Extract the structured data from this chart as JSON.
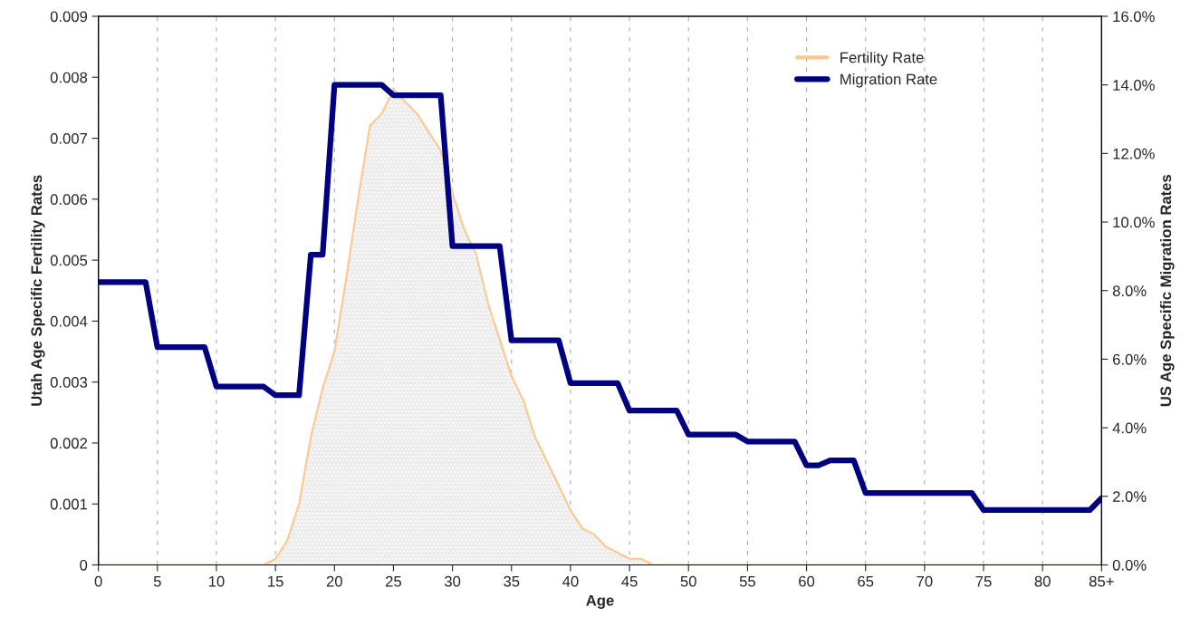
{
  "chart_data": {
    "type": "line",
    "xlabel": "Age",
    "ylabel": "Utah Age Specific Fertility Rates",
    "y2label": "US Age Specific Migration Rates",
    "xlim": [
      0,
      85
    ],
    "xticks": [
      0,
      5,
      10,
      15,
      20,
      25,
      30,
      35,
      40,
      45,
      50,
      55,
      60,
      65,
      70,
      75,
      80,
      {
        "value": 85,
        "label": "85+"
      }
    ],
    "ylim": [
      0,
      0.009
    ],
    "yticks": [
      0,
      0.001,
      0.002,
      0.003,
      0.004,
      0.005,
      0.006,
      0.007,
      0.008,
      0.009
    ],
    "y2lim": [
      0,
      16
    ],
    "y2ticks": [
      {
        "value": 0,
        "label": "0.0%"
      },
      {
        "value": 2,
        "label": "2.0%"
      },
      {
        "value": 4,
        "label": "4.0%"
      },
      {
        "value": 6,
        "label": "6.0%"
      },
      {
        "value": 8,
        "label": "8.0%"
      },
      {
        "value": 10,
        "label": "10.0%"
      },
      {
        "value": 12,
        "label": "12.0%"
      },
      {
        "value": 14,
        "label": "14.0%"
      },
      {
        "value": 16,
        "label": "16.0%"
      }
    ],
    "grid": "x",
    "legend": "top right",
    "series": [
      {
        "name": "Fertility Rate",
        "type": "area",
        "color": "#fcc88e",
        "x": [
          0,
          14,
          15,
          16,
          17,
          18,
          19,
          20,
          21,
          22,
          23,
          24,
          25,
          26,
          27,
          28,
          29,
          30,
          31,
          32,
          33,
          34,
          35,
          36,
          37,
          38,
          39,
          40,
          41,
          42,
          43,
          44,
          45,
          46,
          47,
          85
        ],
        "values": [
          0,
          0,
          0.0001,
          0.0004,
          0.001,
          0.0021,
          0.0029,
          0.0035,
          0.0047,
          0.006,
          0.0072,
          0.0074,
          0.0078,
          0.0076,
          0.0074,
          0.0071,
          0.0068,
          0.0061,
          0.0055,
          0.0051,
          0.0043,
          0.0037,
          0.0031,
          0.0027,
          0.0021,
          0.0017,
          0.0013,
          0.0009,
          0.0006,
          0.0005,
          0.0003,
          0.0002,
          0.0001,
          0.0001,
          0,
          0
        ]
      },
      {
        "name": "Migration Rate",
        "axis": "y2",
        "color": "#000080",
        "x": [
          0,
          4,
          5,
          9,
          10,
          14,
          15,
          17,
          18,
          19,
          20,
          24,
          25,
          29,
          30,
          34,
          35,
          39,
          40,
          44,
          45,
          49,
          50,
          54,
          55,
          59,
          60,
          61,
          62,
          64,
          65,
          74,
          75,
          84,
          85
        ],
        "values": [
          8.25,
          8.25,
          6.35,
          6.35,
          5.2,
          5.2,
          4.95,
          4.95,
          9.05,
          9.05,
          14.0,
          14.0,
          13.7,
          13.7,
          9.3,
          9.3,
          6.55,
          6.55,
          5.3,
          5.3,
          4.5,
          4.5,
          3.8,
          3.8,
          3.6,
          3.6,
          2.9,
          2.9,
          3.05,
          3.05,
          2.1,
          2.1,
          1.6,
          1.6,
          1.95
        ]
      }
    ]
  }
}
